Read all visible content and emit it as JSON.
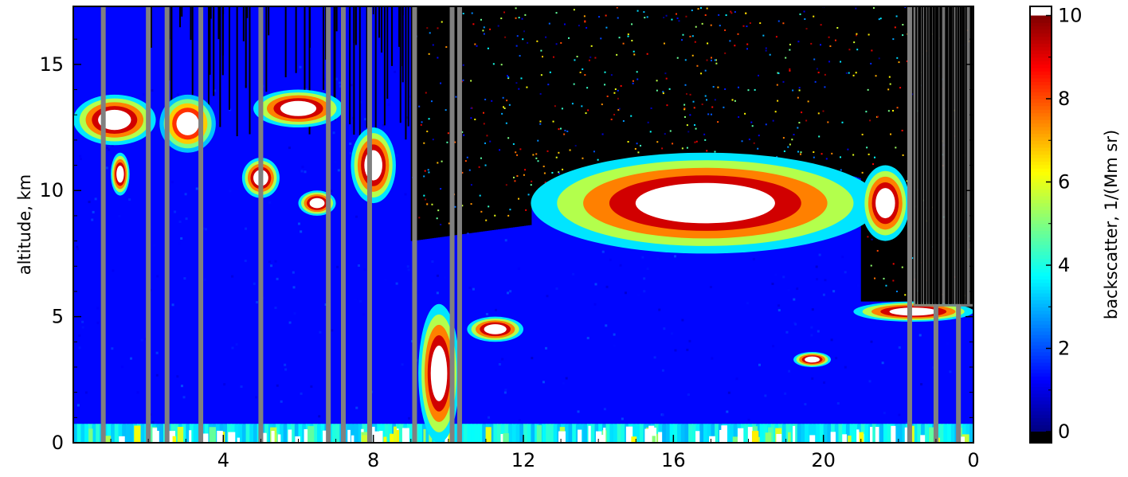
{
  "chart_data": {
    "type": "heatmap",
    "title": "",
    "xlabel": "",
    "ylabel": "altitude, km",
    "x_ticks": [
      "4",
      "8",
      "12",
      "16",
      "20",
      "0"
    ],
    "x_tick_hours": [
      4,
      8,
      12,
      16,
      20,
      24
    ],
    "xlim": [
      0,
      24
    ],
    "y_ticks": [
      "0",
      "5",
      "10",
      "15"
    ],
    "y_tick_values": [
      0,
      5,
      10,
      15
    ],
    "ylim": [
      0,
      17.3
    ],
    "colorbar": {
      "label": "backscatter, 1/(Mm sr)",
      "ticks": [
        "0",
        "2",
        "4",
        "6",
        "8",
        "10"
      ],
      "tick_values": [
        0,
        2,
        4,
        6,
        8,
        10
      ],
      "range": [
        0,
        10
      ],
      "colormap": "jet",
      "over_color": "#ffffff",
      "under_color": "#000000",
      "nodata_color": "#808080"
    },
    "features": [
      {
        "name": "cirrus patch",
        "x_range": [
          0,
          2.2
        ],
        "y_range": [
          11.8,
          13.8
        ],
        "peak": 10
      },
      {
        "name": "cirrus patch",
        "x_range": [
          1,
          1.5
        ],
        "y_range": [
          9.8,
          11.5
        ],
        "peak": 10
      },
      {
        "name": "cirrus patch",
        "x_range": [
          2.3,
          3.8
        ],
        "y_range": [
          11.5,
          13.8
        ],
        "peak": 9
      },
      {
        "name": "cirrus patch",
        "x_range": [
          4.8,
          7.2
        ],
        "y_range": [
          12.5,
          14
        ],
        "peak": 10
      },
      {
        "name": "cirrus patch",
        "x_range": [
          4.5,
          5.5
        ],
        "y_range": [
          9.7,
          11.3
        ],
        "peak": 10
      },
      {
        "name": "cloud patch",
        "x_range": [
          6,
          7
        ],
        "y_range": [
          9,
          10
        ],
        "peak": 10
      },
      {
        "name": "cloud patch",
        "x_range": [
          7.4,
          8.6
        ],
        "y_range": [
          9.5,
          12.5
        ],
        "peak": 10
      },
      {
        "name": "cloud layer",
        "x_range": [
          12.2,
          21.5
        ],
        "y_range": [
          7.5,
          11.5
        ],
        "peak": 10
      },
      {
        "name": "cloud layer",
        "x_range": [
          20.8,
          24
        ],
        "y_range": [
          4.8,
          5.6
        ],
        "peak": 10
      },
      {
        "name": "cloud patch",
        "x_range": [
          21,
          22.3
        ],
        "y_range": [
          8,
          11
        ],
        "peak": 10
      },
      {
        "name": "low cloud",
        "x_range": [
          9.2,
          10.3
        ],
        "y_range": [
          0,
          5.5
        ],
        "peak": 10
      },
      {
        "name": "low cloud",
        "x_range": [
          10.5,
          12
        ],
        "y_range": [
          4,
          5
        ],
        "peak": 10
      },
      {
        "name": "low cloud",
        "x_range": [
          19.2,
          20.2
        ],
        "y_range": [
          3,
          3.6
        ],
        "peak": 10
      }
    ],
    "attenuated_region": {
      "x_from": 9.0,
      "y_top_shown": 17.3
    },
    "nodata_columns": [
      0.8,
      2.0,
      2.5,
      3.4,
      5.0,
      6.8,
      7.2,
      7.9,
      9.1,
      10.1,
      10.3,
      22.3,
      23,
      23.6
    ]
  }
}
